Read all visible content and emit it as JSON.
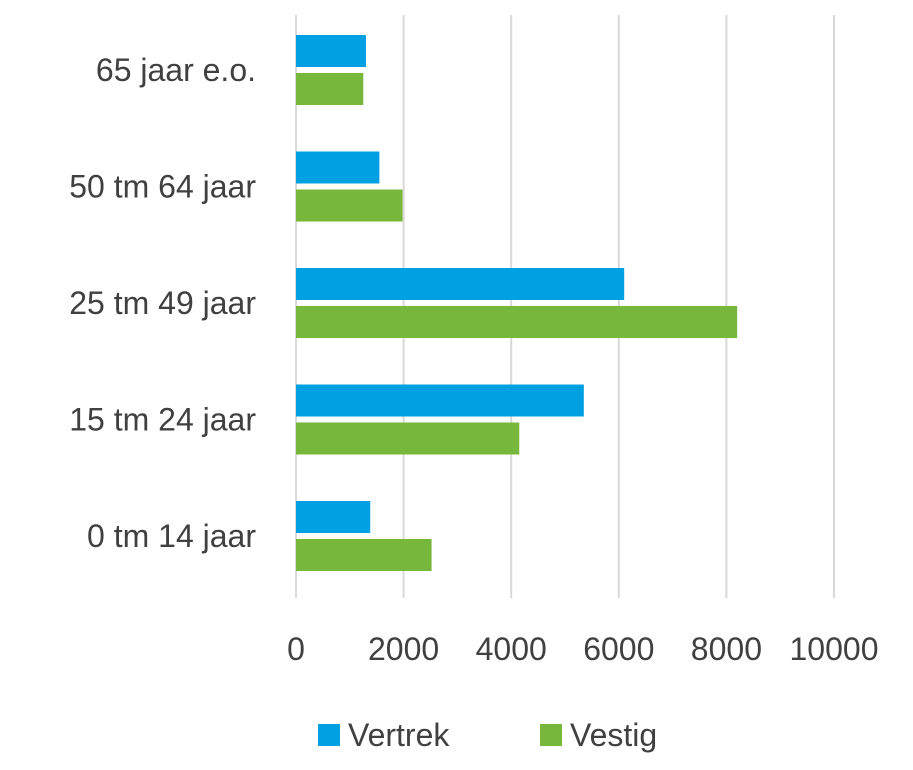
{
  "chart_data": {
    "type": "bar",
    "orientation": "horizontal",
    "categories": [
      "65 jaar e.o.",
      "50 tm 64 jaar",
      "25 tm 49 jaar",
      "15 tm 24 jaar",
      "0 tm 14 jaar"
    ],
    "series": [
      {
        "name": "Vertrek",
        "color": "#00a0e3",
        "values": [
          1300,
          1550,
          6100,
          5350,
          1380
        ]
      },
      {
        "name": "Vestig",
        "color": "#77b83c",
        "values": [
          1250,
          1980,
          8200,
          4150,
          2520
        ]
      }
    ],
    "xlim": [
      0,
      10000
    ],
    "xticks": [
      "0",
      "2000",
      "4000",
      "6000",
      "8000",
      "10000"
    ],
    "grid": "vertical",
    "legend_position": "bottom",
    "title": "",
    "xlabel": "",
    "ylabel": ""
  }
}
